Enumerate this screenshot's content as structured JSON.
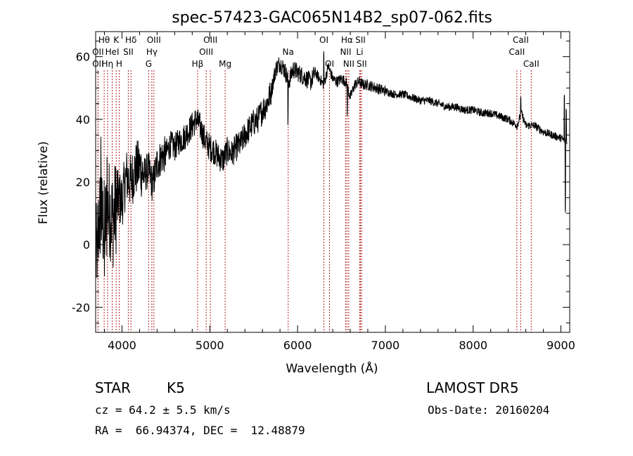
{
  "chart_data": {
    "type": "line",
    "title": "spec-57423-GAC065N14B2_sp07-062.fits",
    "xlabel": "Wavelength (Å)",
    "ylabel": "Flux (relative)",
    "xlim": [
      3700,
      9100
    ],
    "ylim": [
      -28,
      68
    ],
    "xticks": [
      4000,
      5000,
      6000,
      7000,
      8000,
      9000
    ],
    "yticks": [
      -20,
      0,
      20,
      40,
      60
    ],
    "grid": false,
    "line_color": "#000000",
    "marker_color": "#b22222",
    "series": [
      {
        "x": [
          3700,
          3750,
          3800,
          3850,
          3900,
          3950,
          4000,
          4050,
          4100,
          4150,
          4200,
          4250,
          4300,
          4350,
          4400,
          4450,
          4500,
          4550,
          4600,
          4650,
          4700,
          4750,
          4800,
          4850,
          4900,
          4950,
          5000,
          5050,
          5100,
          5150,
          5200,
          5250,
          5300,
          5350,
          5400,
          5450,
          5500,
          5550,
          5600,
          5650,
          5700,
          5750,
          5800,
          5850,
          5900,
          5950,
          6000,
          6050,
          6100,
          6150,
          6200,
          6250,
          6300,
          6350,
          6400,
          6450,
          6500,
          6550,
          6600,
          6650,
          6700,
          6750,
          6800,
          6900,
          7000,
          7100,
          7200,
          7300,
          7400,
          7500,
          7600,
          7700,
          7800,
          7900,
          8000,
          8100,
          8200,
          8300,
          8400,
          8500,
          8550,
          8600,
          8700,
          8800,
          8900,
          9000,
          9050
        ],
        "y": [
          -5,
          10,
          5,
          12,
          8,
          15,
          14,
          22,
          20,
          24,
          25,
          22,
          24,
          19,
          26,
          28,
          29,
          32,
          31,
          33,
          34,
          36,
          38,
          40,
          37,
          33,
          31,
          30,
          28,
          27,
          30,
          29,
          31,
          32,
          35,
          37,
          39,
          40,
          43,
          45,
          49,
          56,
          58,
          56,
          52,
          56,
          55,
          54,
          53,
          52,
          55,
          53,
          51,
          57,
          53,
          52,
          53,
          52,
          47,
          51,
          52,
          51,
          51,
          50,
          49,
          48,
          48,
          47,
          46,
          46,
          45,
          44,
          44,
          43,
          43,
          42,
          42,
          41,
          40,
          38,
          42,
          38,
          38,
          36,
          35,
          34,
          33
        ]
      }
    ],
    "noise_amplitude": [
      {
        "until": 3950,
        "amp": 16
      },
      {
        "until": 4250,
        "amp": 9
      },
      {
        "until": 4500,
        "amp": 6
      },
      {
        "until": 5700,
        "amp": 4.5
      },
      {
        "until": 6200,
        "amp": 3
      },
      {
        "until": 7000,
        "amp": 1.8
      },
      {
        "until": 9100,
        "amp": 1.3
      }
    ],
    "spectral_lines": [
      {
        "label": "Hθ",
        "x": 3797,
        "row": 0
      },
      {
        "label": "OII",
        "x": 3727,
        "row": 1
      },
      {
        "label": "OII",
        "x": 3727,
        "row": 2
      },
      {
        "label": "Hη",
        "x": 3835,
        "row": 2
      },
      {
        "label": "HeI",
        "x": 3889,
        "row": 1
      },
      {
        "label": "K",
        "x": 3934,
        "row": 0
      },
      {
        "label": "H",
        "x": 3968,
        "row": 2
      },
      {
        "label": "SII",
        "x": 4072,
        "row": 1
      },
      {
        "label": "Hδ",
        "x": 4102,
        "row": 0
      },
      {
        "label": "Hγ",
        "x": 4340,
        "row": 1
      },
      {
        "label": "G",
        "x": 4304,
        "row": 2
      },
      {
        "label": "OIII",
        "x": 4363,
        "row": 0
      },
      {
        "label": "Hβ",
        "x": 4861,
        "row": 2
      },
      {
        "label": "OIII",
        "x": 4959,
        "row": 1
      },
      {
        "label": "OIII",
        "x": 5007,
        "row": 0
      },
      {
        "label": "Mg",
        "x": 5175,
        "row": 2
      },
      {
        "label": "Na",
        "x": 5893,
        "row": 1
      },
      {
        "label": "OI",
        "x": 6300,
        "row": 0
      },
      {
        "label": "OI",
        "x": 6364,
        "row": 2
      },
      {
        "label": "NII",
        "x": 6548,
        "row": 1
      },
      {
        "label": "Hα",
        "x": 6563,
        "row": 0
      },
      {
        "label": "NII",
        "x": 6583,
        "row": 2
      },
      {
        "label": "Li",
        "x": 6708,
        "row": 1
      },
      {
        "label": "SII",
        "x": 6716,
        "row": 0
      },
      {
        "label": "SII",
        "x": 6731,
        "row": 2
      },
      {
        "label": "CaII",
        "x": 8498,
        "row": 1
      },
      {
        "label": "CaII",
        "x": 8542,
        "row": 0
      },
      {
        "label": "CaII",
        "x": 8662,
        "row": 2
      }
    ]
  },
  "info": {
    "class_label": "STAR",
    "subclass_label": "K5",
    "survey": "LAMOST DR5",
    "redshift": "cz = 64.2 ± 5.5 km/s",
    "obs_date": "Obs-Date: 20160204",
    "coords": "RA =  66.94374, DEC =  12.48879"
  }
}
